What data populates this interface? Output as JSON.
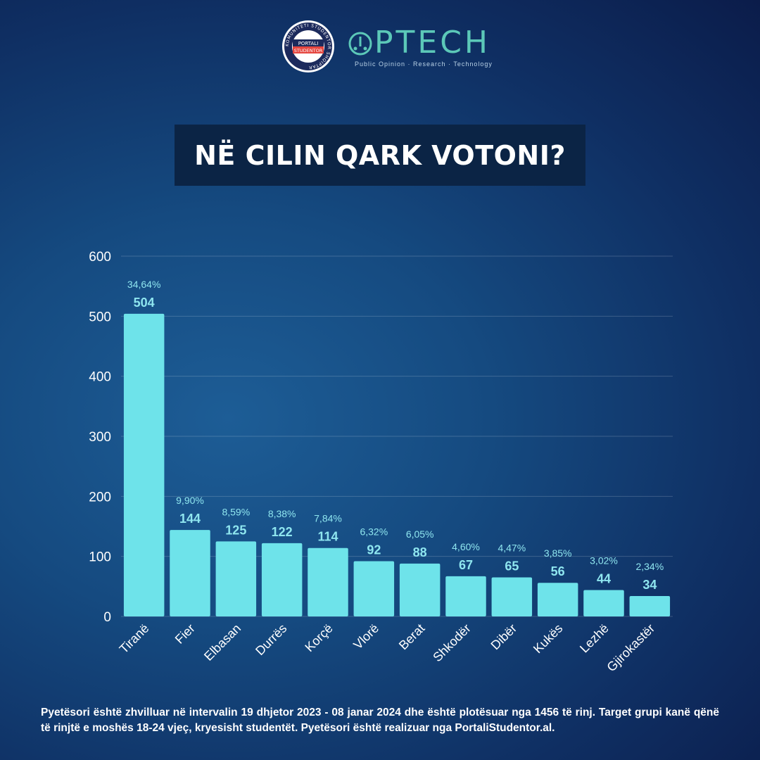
{
  "logos": {
    "portal_ring_text": "KOMUNITETI STUDENTOR SHQIPTAR",
    "portal_line1": "PORTALI",
    "portal_line2": "STUDENTOR",
    "optech_word": "PTECH",
    "optech_tagline": "Public Opinion · Research · Technology"
  },
  "title": "NË CILIN QARK VOTONI?",
  "chart_data": {
    "type": "bar",
    "categories": [
      "Tiranë",
      "Fier",
      "Elbasan",
      "Durrës",
      "Korçë",
      "Vlorë",
      "Berat",
      "Shkodër",
      "Dibër",
      "Kukës",
      "Lezhë",
      "Gjirokastër"
    ],
    "values": [
      504,
      144,
      125,
      122,
      114,
      92,
      88,
      67,
      65,
      56,
      44,
      34
    ],
    "value_labels": [
      "504",
      "144",
      "125",
      "122",
      "114",
      "92",
      "88",
      "67",
      "65",
      "56",
      "44",
      "34"
    ],
    "percent_labels": [
      "34,64%",
      "9,90%",
      "8,59%",
      "8,38%",
      "7,84%",
      "6,32%",
      "6,05%",
      "4,60%",
      "4,47%",
      "3,85%",
      "3,02%",
      "2,34%"
    ],
    "yticks": [
      "0",
      "100",
      "200",
      "300",
      "400",
      "500",
      "600"
    ],
    "ylim": [
      0,
      600
    ],
    "grid": true,
    "bar_color": "#6ee3ea",
    "label_color": "#8fe6ef"
  },
  "footnote": "Pyetësori është zhvilluar në intervalin 19 dhjetor 2023 - 08 janar 2024 dhe është plotësuar nga 1456 të rinj. Target grupi kanë qënë të rinjtë e moshës 18-24 vjeç, kryesisht studentët. Pyetësori është realizuar nga PortaliStudentor.al."
}
